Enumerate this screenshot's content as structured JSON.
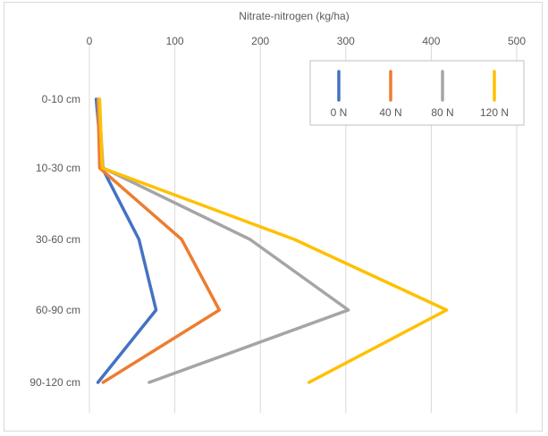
{
  "chart_data": {
    "type": "line",
    "xlabel": "Nitrate-nitrogen  (kg/ha)",
    "xlim": [
      0,
      500
    ],
    "x_ticks": [
      "0",
      "100",
      "200",
      "300",
      "400",
      "500"
    ],
    "categories": [
      "0-10 cm",
      "10-30 cm",
      "30-60 cm",
      "60-90 cm",
      "90-120 cm"
    ],
    "grid": "vertical",
    "legend_position": "top-right",
    "series": [
      {
        "name": "0 N",
        "color": "#4472C4",
        "values": [
          8,
          15,
          58,
          78,
          10
        ]
      },
      {
        "name": "40 N",
        "color": "#ED7D31",
        "values": [
          10,
          12,
          108,
          152,
          16
        ]
      },
      {
        "name": "80 N",
        "color": "#A5A5A5",
        "values": [
          11,
          16,
          188,
          303,
          70
        ]
      },
      {
        "name": "120 N",
        "color": "#FFC000",
        "values": [
          12,
          15,
          240,
          418,
          257
        ]
      }
    ]
  }
}
